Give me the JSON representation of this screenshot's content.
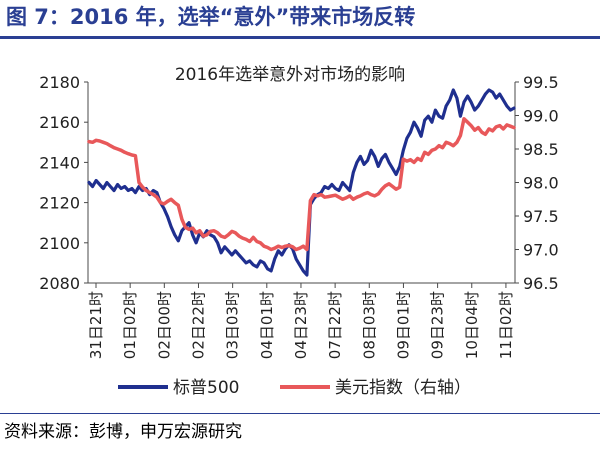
{
  "figure_title": "图 7：2016 年，选举“意外”带来市场反转",
  "source": "资料来源：彭博，申万宏源研究",
  "chart_data": {
    "type": "line",
    "title": "2016年选举意外对市场的影响",
    "x_labels": [
      "31日21时",
      "01日02时",
      "02日00时",
      "02日22时",
      "03日03时",
      "04日01时",
      "04日23时",
      "07日22时",
      "08日03时",
      "09日01时",
      "09日23时",
      "10日04时",
      "11日02时"
    ],
    "y_left": {
      "lim": [
        2080,
        2180
      ],
      "ticks": [
        "2080",
        "2100",
        "2120",
        "2140",
        "2160",
        "2180"
      ]
    },
    "y_right": {
      "lim": [
        96.5,
        99.5
      ],
      "ticks": [
        "96.5",
        "97.0",
        "97.5",
        "98.0",
        "98.5",
        "99.0",
        "99.5"
      ]
    },
    "grid": false,
    "legend_position": "bottom",
    "series": [
      {
        "name": "标普500",
        "axis": "left",
        "color": "#1f2f8f",
        "values": [
          2130,
          2128,
          2131,
          2129,
          2127,
          2130,
          2128,
          2126,
          2129,
          2127,
          2128,
          2126,
          2127,
          2125,
          2128,
          2126,
          2127,
          2124,
          2126,
          2125,
          2120,
          2117,
          2113,
          2108,
          2104,
          2101,
          2106,
          2108,
          2110,
          2104,
          2100,
          2105,
          2103,
          2106,
          2104,
          2103,
          2100,
          2095,
          2098,
          2096,
          2094,
          2096,
          2094,
          2092,
          2090,
          2091,
          2089,
          2088,
          2091,
          2090,
          2087,
          2086,
          2092,
          2096,
          2094,
          2097,
          2099,
          2097,
          2092,
          2089,
          2086,
          2084,
          2119,
          2122,
          2124,
          2125,
          2128,
          2127,
          2129,
          2127,
          2126,
          2130,
          2128,
          2126,
          2135,
          2140,
          2143,
          2139,
          2141,
          2146,
          2143,
          2138,
          2142,
          2144,
          2140,
          2137,
          2134,
          2138,
          2146,
          2152,
          2155,
          2160,
          2157,
          2153,
          2161,
          2163,
          2160,
          2166,
          2163,
          2162,
          2168,
          2171,
          2176,
          2172,
          2163,
          2170,
          2173,
          2170,
          2166,
          2168,
          2171,
          2174,
          2176,
          2175,
          2172,
          2174,
          2171,
          2168,
          2166,
          2167
        ]
      },
      {
        "name": "美元指数（右轴）",
        "axis": "right",
        "color": "#e8585a",
        "values": [
          98.61,
          98.6,
          98.63,
          98.62,
          98.6,
          98.58,
          98.55,
          98.52,
          98.5,
          98.48,
          98.45,
          98.43,
          98.41,
          98.4,
          98.0,
          97.93,
          97.88,
          97.85,
          97.82,
          97.78,
          97.7,
          97.68,
          97.72,
          97.75,
          97.7,
          97.66,
          97.45,
          97.33,
          97.3,
          97.32,
          97.25,
          97.28,
          97.2,
          97.22,
          97.27,
          97.28,
          97.25,
          97.2,
          97.18,
          97.22,
          97.27,
          97.25,
          97.2,
          97.17,
          97.15,
          97.12,
          97.18,
          97.12,
          97.1,
          97.05,
          97.03,
          97.0,
          97.02,
          97.05,
          97.03,
          97.05,
          97.06,
          97.04,
          97.0,
          97.02,
          97.05,
          97.0,
          97.73,
          97.82,
          97.8,
          97.82,
          97.78,
          97.79,
          97.8,
          97.81,
          97.78,
          97.75,
          97.77,
          97.8,
          97.75,
          97.78,
          97.8,
          97.83,
          97.85,
          97.82,
          97.8,
          97.83,
          97.9,
          97.95,
          97.98,
          97.94,
          97.9,
          97.93,
          98.35,
          98.32,
          98.34,
          98.3,
          98.36,
          98.33,
          98.45,
          98.42,
          98.48,
          98.5,
          98.55,
          98.52,
          98.6,
          98.58,
          98.55,
          98.6,
          98.7,
          98.95,
          98.9,
          98.85,
          98.78,
          98.82,
          98.75,
          98.72,
          98.8,
          98.77,
          98.83,
          98.85,
          98.8,
          98.86,
          98.84,
          98.82
        ]
      }
    ]
  }
}
